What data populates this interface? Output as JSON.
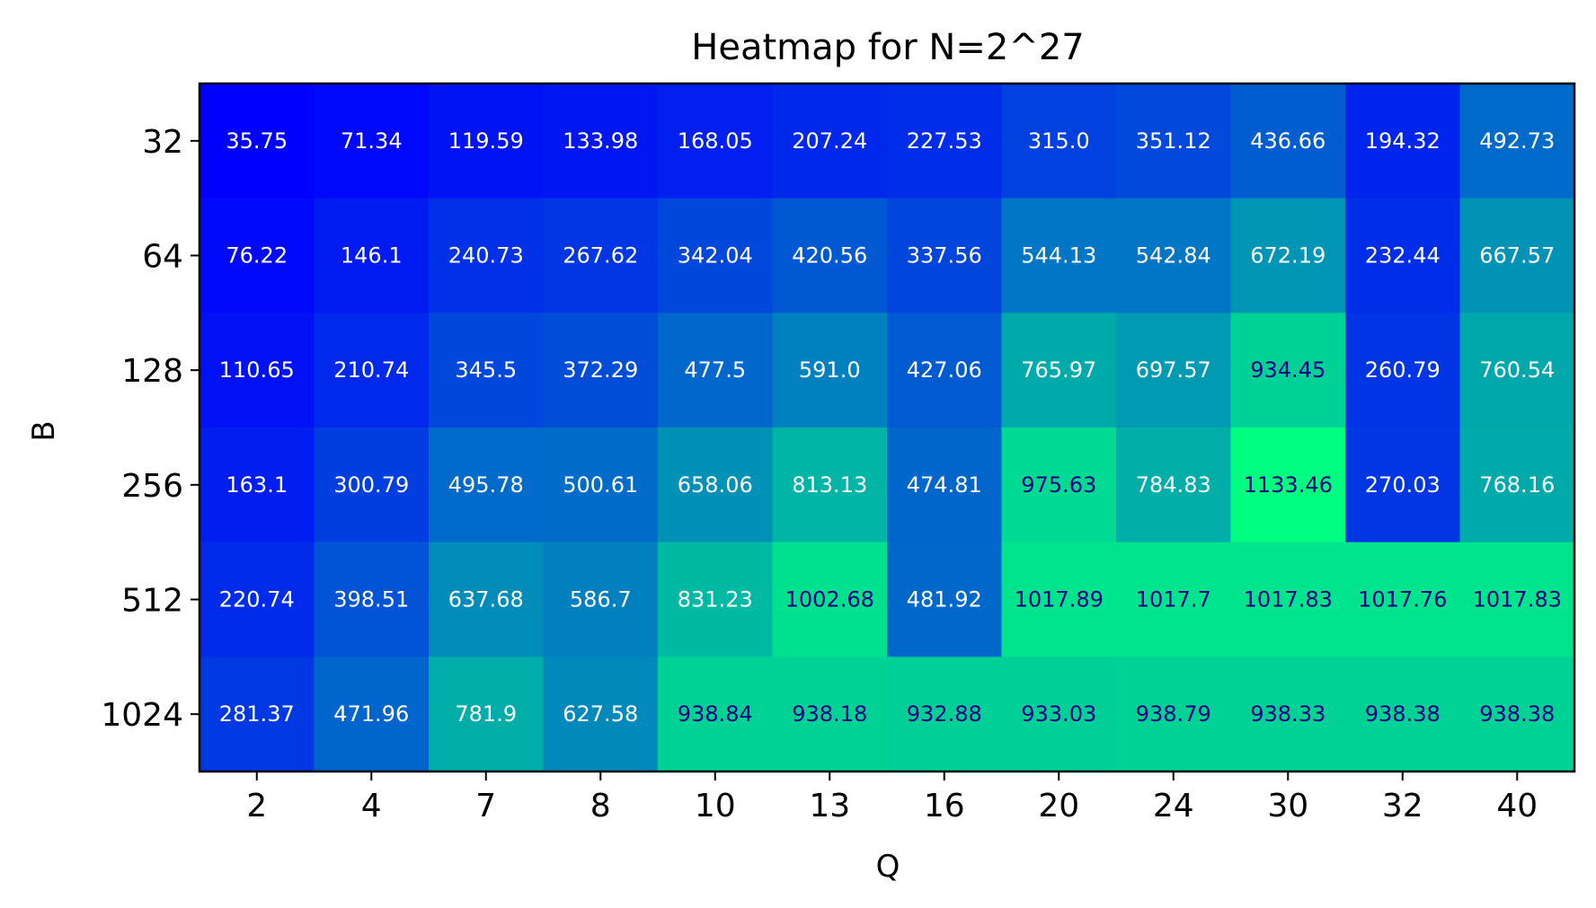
{
  "chart_data": {
    "type": "heatmap",
    "title": "Heatmap for N=2^27",
    "xlabel": "Q",
    "ylabel": "B",
    "x_categories": [
      "2",
      "4",
      "7",
      "8",
      "10",
      "13",
      "16",
      "20",
      "24",
      "30",
      "32",
      "40"
    ],
    "y_categories": [
      "32",
      "64",
      "128",
      "256",
      "512",
      "1024"
    ],
    "values": [
      [
        35.75,
        71.34,
        119.59,
        133.98,
        168.05,
        207.24,
        227.53,
        315.0,
        351.12,
        436.66,
        194.32,
        492.73
      ],
      [
        76.22,
        146.1,
        240.73,
        267.62,
        342.04,
        420.56,
        337.56,
        544.13,
        542.84,
        672.19,
        232.44,
        667.57
      ],
      [
        110.65,
        210.74,
        345.5,
        372.29,
        477.5,
        591.0,
        427.06,
        765.97,
        697.57,
        934.45,
        260.79,
        760.54
      ],
      [
        163.1,
        300.79,
        495.78,
        500.61,
        658.06,
        813.13,
        474.81,
        975.63,
        784.83,
        1133.46,
        270.03,
        768.16
      ],
      [
        220.74,
        398.51,
        637.68,
        586.7,
        831.23,
        1002.68,
        481.92,
        1017.89,
        1017.7,
        1017.83,
        1017.76,
        1017.83
      ],
      [
        281.37,
        471.96,
        781.9,
        627.58,
        938.84,
        938.18,
        932.88,
        933.03,
        938.79,
        938.33,
        938.38,
        938.38
      ]
    ],
    "value_labels": [
      [
        "35.75",
        "71.34",
        "119.59",
        "133.98",
        "168.05",
        "207.24",
        "227.53",
        "315.0",
        "351.12",
        "436.66",
        "194.32",
        "492.73"
      ],
      [
        "76.22",
        "146.1",
        "240.73",
        "267.62",
        "342.04",
        "420.56",
        "337.56",
        "544.13",
        "542.84",
        "672.19",
        "232.44",
        "667.57"
      ],
      [
        "110.65",
        "210.74",
        "345.5",
        "372.29",
        "477.5",
        "591.0",
        "427.06",
        "765.97",
        "697.57",
        "934.45",
        "260.79",
        "760.54"
      ],
      [
        "163.1",
        "300.79",
        "495.78",
        "500.61",
        "658.06",
        "813.13",
        "474.81",
        "975.63",
        "784.83",
        "1133.46",
        "270.03",
        "768.16"
      ],
      [
        "220.74",
        "398.51",
        "637.68",
        "586.7",
        "831.23",
        "1002.68",
        "481.92",
        "1017.89",
        "1017.7",
        "1017.83",
        "1017.76",
        "1017.83"
      ],
      [
        "281.37",
        "471.96",
        "781.9",
        "627.58",
        "938.84",
        "938.18",
        "932.88",
        "933.03",
        "938.79",
        "938.33",
        "938.38",
        "938.38"
      ]
    ],
    "colormap": "winter",
    "color_min": 35.75,
    "color_max": 1133.46,
    "cell_text_colors": {
      "light": "#ffffff",
      "dark": "#000080"
    },
    "text_color_threshold": 900,
    "grid": false,
    "legend": "none"
  }
}
